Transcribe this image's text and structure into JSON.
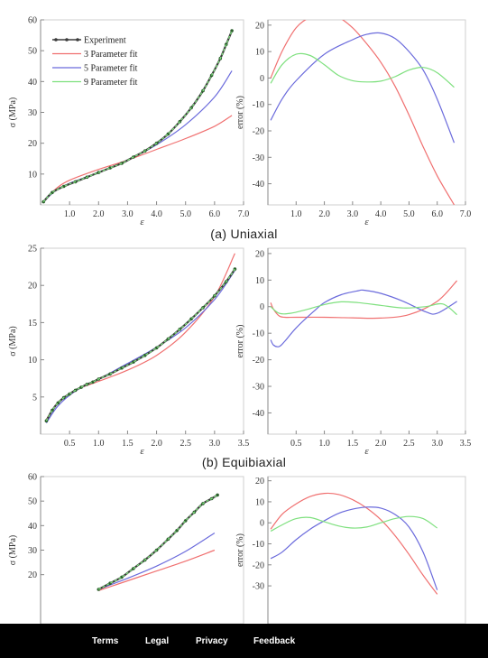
{
  "captions": [
    "(a) Uniaxial",
    "(b) Equibiaxial"
  ],
  "footer": {
    "links": [
      "Terms",
      "Legal",
      "Privacy",
      "Feedback"
    ]
  },
  "colors": {
    "experiment": "#3a3a3a",
    "marker": "#2c5f2d",
    "p3": "#f07070",
    "p5": "#6b6bdc",
    "p9": "#7ee07e"
  },
  "chart_data": [
    {
      "type": "line",
      "panel": "a-left",
      "xlabel": "ε",
      "ylabel": "σ (MPa)",
      "xlim": [
        0,
        7.0
      ],
      "ylim": [
        0,
        60
      ],
      "xticks": [
        1.0,
        2.0,
        3.0,
        4.0,
        5.0,
        6.0,
        7.0
      ],
      "xticklabels": [
        "1.0",
        "2.0",
        "3.0",
        "4.0",
        "5.0",
        "6.0",
        "7.0"
      ],
      "yticks": [
        10,
        20,
        30,
        40,
        50,
        60
      ],
      "legend": {
        "position": "top-left",
        "entries": [
          "Experiment",
          "3 Parameter fit",
          "5 Parameter fit",
          "9 Parameter fit"
        ]
      },
      "series": [
        {
          "name": "Experiment",
          "x": [
            0.1,
            0.4,
            0.8,
            1.2,
            1.6,
            2.0,
            2.4,
            2.8,
            3.2,
            3.6,
            4.0,
            4.4,
            4.8,
            5.2,
            5.6,
            5.9,
            6.2,
            6.4,
            6.6
          ],
          "y": [
            1,
            4,
            6,
            7.5,
            9,
            10.5,
            12,
            13.5,
            15.5,
            17.5,
            20,
            23,
            27,
            31.5,
            37,
            42,
            47.5,
            52,
            56.5
          ]
        },
        {
          "name": "3 Parameter fit",
          "x": [
            0.1,
            0.5,
            1,
            2,
            3,
            4,
            5,
            6,
            6.6
          ],
          "y": [
            1,
            5,
            8,
            11.5,
            14.5,
            18,
            21.5,
            25.5,
            29
          ]
        },
        {
          "name": "5 Parameter fit",
          "x": [
            0.1,
            0.5,
            1,
            2,
            3,
            4,
            5,
            6,
            6.6
          ],
          "y": [
            1,
            4.5,
            7,
            10.5,
            14.5,
            19.5,
            26,
            35,
            43.5
          ]
        },
        {
          "name": "9 Parameter fit",
          "x": [
            0.1,
            0.4,
            0.8,
            1.2,
            1.6,
            2.0,
            2.4,
            2.8,
            3.2,
            3.6,
            4.0,
            4.4,
            4.8,
            5.2,
            5.6,
            5.9,
            6.2,
            6.4,
            6.6
          ],
          "y": [
            1,
            4,
            6,
            7.5,
            9,
            10.5,
            12,
            13.5,
            15.5,
            17.5,
            20,
            23,
            27,
            31.5,
            37,
            42,
            47.5,
            52,
            56.5
          ]
        }
      ]
    },
    {
      "type": "line",
      "panel": "a-right",
      "xlabel": "ε",
      "ylabel": "error (%)",
      "xlim": [
        0,
        7.0
      ],
      "ylim": [
        -48,
        22
      ],
      "xticks": [
        1.0,
        2.0,
        3.0,
        4.0,
        5.0,
        6.0,
        7.0
      ],
      "xticklabels": [
        "1.0",
        "2.0",
        "3.0",
        "4.0",
        "5.0",
        "6.0",
        "7.0"
      ],
      "yticks": [
        -40,
        -30,
        -20,
        -10,
        0,
        10,
        20
      ],
      "series": [
        {
          "name": "3 Parameter fit",
          "x": [
            0.1,
            0.5,
            1,
            1.5,
            2,
            2.5,
            3,
            3.5,
            4,
            4.5,
            5,
            5.5,
            6,
            6.6
          ],
          "y": [
            0,
            10,
            19,
            23,
            24.5,
            23,
            19,
            13,
            6,
            -3,
            -14,
            -26,
            -37,
            -48
          ]
        },
        {
          "name": "5 Parameter fit",
          "x": [
            0.1,
            0.5,
            1,
            2,
            3,
            3.5,
            4,
            4.5,
            5,
            5.5,
            6,
            6.6
          ],
          "y": [
            -16,
            -8,
            -1,
            9,
            14.5,
            16.5,
            17,
            15,
            10,
            3,
            -8,
            -24.5
          ]
        },
        {
          "name": "9 Parameter fit",
          "x": [
            0.1,
            0.5,
            1,
            1.5,
            2,
            2.5,
            3,
            3.5,
            4,
            4.5,
            5,
            5.5,
            6,
            6.6
          ],
          "y": [
            -2,
            5,
            9,
            8.5,
            5,
            1,
            -1,
            -1.5,
            -1.2,
            0.5,
            3,
            4,
            2,
            -3.5
          ]
        }
      ]
    },
    {
      "type": "line",
      "panel": "b-left",
      "xlabel": "ε",
      "ylabel": "σ (MPa)",
      "xlim": [
        0,
        3.5
      ],
      "ylim": [
        0,
        25
      ],
      "xticks": [
        0.5,
        1.0,
        1.5,
        2.0,
        2.5,
        3.0,
        3.5
      ],
      "xticklabels": [
        "0.5",
        "1.0",
        "1.5",
        "2.0",
        "2.5",
        "3.0",
        "3.5"
      ],
      "yticks": [
        5,
        10,
        15,
        20,
        25
      ],
      "series": [
        {
          "name": "Experiment",
          "x": [
            0.1,
            0.2,
            0.3,
            0.4,
            0.5,
            0.6,
            0.7,
            0.8,
            0.9,
            1.0,
            1.2,
            1.4,
            1.6,
            1.8,
            2.0,
            2.2,
            2.4,
            2.6,
            2.8,
            3.0,
            3.2,
            3.35
          ],
          "y": [
            1.8,
            3.2,
            4.2,
            4.9,
            5.4,
            5.9,
            6.3,
            6.7,
            7.0,
            7.4,
            8.1,
            8.9,
            9.7,
            10.6,
            11.6,
            12.8,
            14.1,
            15.5,
            17.0,
            18.6,
            20.5,
            22.2
          ]
        },
        {
          "name": "3 Parameter fit",
          "x": [
            0.1,
            0.3,
            0.6,
            1,
            1.5,
            2,
            2.5,
            3,
            3.35
          ],
          "y": [
            2,
            4.3,
            5.9,
            7.1,
            8.6,
            10.6,
            13.7,
            18.5,
            24.3
          ]
        },
        {
          "name": "5 Parameter fit",
          "x": [
            0.1,
            0.3,
            0.6,
            1,
            1.5,
            2,
            2.5,
            3,
            3.35
          ],
          "y": [
            1.5,
            3.8,
            5.8,
            7.4,
            9.5,
            11.7,
            14.3,
            18.1,
            22.0
          ]
        },
        {
          "name": "9 Parameter fit",
          "x": [
            0.1,
            0.2,
            0.3,
            0.4,
            0.5,
            0.6,
            0.7,
            0.8,
            0.9,
            1.0,
            1.2,
            1.4,
            1.6,
            1.8,
            2.0,
            2.2,
            2.4,
            2.6,
            2.8,
            3.0,
            3.2,
            3.35
          ],
          "y": [
            1.8,
            3.2,
            4.2,
            4.9,
            5.4,
            5.9,
            6.3,
            6.7,
            7.0,
            7.4,
            8.1,
            8.9,
            9.7,
            10.6,
            11.6,
            12.8,
            14.1,
            15.5,
            17.0,
            18.6,
            20.5,
            22.2
          ]
        }
      ]
    },
    {
      "type": "line",
      "panel": "b-right",
      "xlabel": "ε",
      "ylabel": "error (%)",
      "xlim": [
        0,
        3.5
      ],
      "ylim": [
        -48,
        22
      ],
      "xticks": [
        0.5,
        1.0,
        1.5,
        2.0,
        2.5,
        3.0,
        3.5
      ],
      "xticklabels": [
        "0.5",
        "1.0",
        "1.5",
        "2.0",
        "2.5",
        "3.0",
        "3.5"
      ],
      "yticks": [
        -40,
        -30,
        -20,
        -10,
        0,
        10,
        20
      ],
      "series": [
        {
          "name": "3 Parameter fit",
          "x": [
            0.05,
            0.1,
            0.2,
            0.3,
            0.5,
            1,
            1.5,
            2,
            2.5,
            3,
            3.35
          ],
          "y": [
            1.5,
            -1,
            -3.5,
            -4,
            -4,
            -4,
            -4.2,
            -4.3,
            -3,
            2,
            9.8
          ]
        },
        {
          "name": "5 Parameter fit",
          "x": [
            0.05,
            0.1,
            0.2,
            0.3,
            0.5,
            0.8,
            1,
            1.3,
            1.6,
            1.7,
            2,
            2.4,
            2.8,
            3,
            3.35
          ],
          "y": [
            -12.5,
            -14.5,
            -15,
            -13,
            -8,
            -2,
            1.5,
            4.5,
            6,
            6.2,
            5,
            2,
            -2,
            -2.5,
            2
          ]
        },
        {
          "name": "9 Parameter fit",
          "x": [
            0.05,
            0.2,
            0.4,
            0.7,
            1,
            1.3,
            1.6,
            2,
            2.4,
            2.8,
            3.1,
            3.35
          ],
          "y": [
            0,
            -2.5,
            -2.5,
            -1,
            0.8,
            1.8,
            1.5,
            0.5,
            -0.5,
            0,
            1,
            -3
          ]
        }
      ]
    },
    {
      "type": "line",
      "panel": "c-left",
      "xlabel": "",
      "ylabel": "σ (MPa)",
      "xlim": [
        0,
        7.0
      ],
      "ylim": [
        0,
        60
      ],
      "yticks": [
        20,
        30,
        40,
        50,
        60
      ],
      "series": [
        {
          "name": "Experiment",
          "x": [
            2.0,
            2.4,
            2.8,
            3.2,
            3.6,
            4.0,
            4.4,
            4.7,
            5.0,
            5.3,
            5.6,
            5.9,
            6.1
          ],
          "y": [
            14,
            16.5,
            19,
            22.5,
            26,
            30,
            34.5,
            38,
            42,
            45.5,
            49,
            51,
            52.5
          ]
        },
        {
          "name": "3 Parameter fit",
          "x": [
            2,
            3,
            4,
            5,
            6
          ],
          "y": [
            13.5,
            17.5,
            21.5,
            25.5,
            30
          ]
        },
        {
          "name": "5 Parameter fit",
          "x": [
            2,
            3,
            4,
            5,
            6
          ],
          "y": [
            14,
            18.5,
            23.5,
            29.5,
            37
          ]
        },
        {
          "name": "9 Parameter fit",
          "x": [
            2.0,
            2.4,
            2.8,
            3.2,
            3.6,
            4.0,
            4.4,
            4.7,
            5.0,
            5.3,
            5.6,
            5.9,
            6.1
          ],
          "y": [
            14,
            16.5,
            19,
            22.5,
            26,
            30,
            34.5,
            38,
            42,
            45.5,
            49,
            51,
            52.5
          ]
        }
      ]
    },
    {
      "type": "line",
      "panel": "c-right",
      "xlabel": "",
      "ylabel": "error (%)",
      "xlim": [
        0,
        7.0
      ],
      "ylim": [
        -48,
        22
      ],
      "yticks": [
        -30,
        -20,
        -10,
        0,
        10,
        20
      ],
      "series": [
        {
          "name": "3 Parameter fit",
          "x": [
            0.1,
            0.5,
            1,
            1.5,
            2,
            2.5,
            3,
            3.5,
            4,
            4.5,
            5,
            5.5,
            6
          ],
          "y": [
            -3,
            4,
            9,
            12.5,
            14,
            13.5,
            11,
            7,
            1.5,
            -6,
            -15,
            -25,
            -34
          ]
        },
        {
          "name": "5 Parameter fit",
          "x": [
            0.1,
            0.5,
            1,
            1.5,
            2,
            2.5,
            3,
            3.5,
            4,
            4.5,
            5,
            5.5,
            6
          ],
          "y": [
            -17,
            -14,
            -8,
            -3,
            1,
            4.5,
            6.5,
            7.5,
            7,
            4,
            -2,
            -14,
            -32
          ]
        },
        {
          "name": "9 Parameter fit",
          "x": [
            0.1,
            0.5,
            1,
            1.5,
            2,
            2.5,
            3,
            3.5,
            4,
            4.5,
            5,
            5.5,
            6
          ],
          "y": [
            -4,
            -1,
            2,
            2.5,
            0.5,
            -1.5,
            -2.5,
            -2,
            0,
            2,
            3,
            2,
            -2.5
          ]
        }
      ]
    }
  ]
}
